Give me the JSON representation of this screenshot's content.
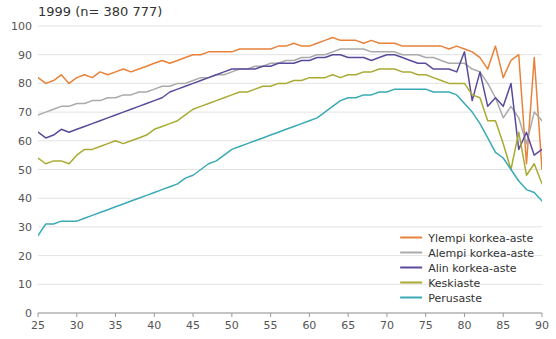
{
  "chart_data": {
    "type": "line",
    "title": "1999 (n= 380 777)",
    "x": [
      25,
      26,
      27,
      28,
      29,
      30,
      31,
      32,
      33,
      34,
      35,
      36,
      37,
      38,
      39,
      40,
      41,
      42,
      43,
      44,
      45,
      46,
      47,
      48,
      49,
      50,
      51,
      52,
      53,
      54,
      55,
      56,
      57,
      58,
      59,
      60,
      61,
      62,
      63,
      64,
      65,
      66,
      67,
      68,
      69,
      70,
      71,
      72,
      73,
      74,
      75,
      76,
      77,
      78,
      79,
      80,
      81,
      82,
      83,
      84,
      85,
      86,
      87,
      88,
      89,
      90
    ],
    "series": [
      {
        "name": "Ylempi korkea-aste",
        "color": "#E8823A",
        "values": [
          82,
          80,
          81,
          83,
          80,
          82,
          83,
          82,
          84,
          83,
          84,
          85,
          84,
          85,
          86,
          87,
          88,
          87,
          88,
          89,
          90,
          90,
          91,
          91,
          91,
          91,
          92,
          92,
          92,
          92,
          92,
          93,
          93,
          94,
          93,
          93,
          94,
          95,
          96,
          95,
          95,
          95,
          94,
          95,
          94,
          94,
          94,
          93,
          93,
          93,
          93,
          93,
          93,
          92,
          93,
          92,
          91,
          89,
          85,
          93,
          82,
          88,
          90,
          52,
          89,
          50
        ]
      },
      {
        "name": "Alempi korkea-aste",
        "color": "#AAAAAA",
        "values": [
          69,
          70,
          71,
          72,
          72,
          73,
          73,
          74,
          74,
          75,
          75,
          76,
          76,
          77,
          77,
          78,
          79,
          79,
          80,
          80,
          81,
          82,
          82,
          83,
          83,
          84,
          85,
          85,
          86,
          86,
          87,
          87,
          88,
          88,
          89,
          89,
          90,
          90,
          91,
          92,
          92,
          92,
          92,
          91,
          91,
          91,
          91,
          90,
          90,
          90,
          89,
          89,
          88,
          87,
          87,
          87,
          85,
          84,
          80,
          75,
          68,
          72,
          68,
          59,
          70,
          67
        ]
      },
      {
        "name": "Alin korkea-aste",
        "color": "#5B4A9B",
        "values": [
          63,
          61,
          62,
          64,
          63,
          64,
          65,
          66,
          67,
          68,
          69,
          70,
          71,
          72,
          73,
          74,
          75,
          77,
          78,
          79,
          80,
          81,
          82,
          83,
          84,
          85,
          85,
          85,
          85,
          86,
          86,
          87,
          87,
          87,
          88,
          88,
          89,
          89,
          90,
          90,
          89,
          89,
          89,
          88,
          89,
          90,
          90,
          89,
          88,
          87,
          87,
          85,
          85,
          85,
          84,
          91,
          74,
          84,
          72,
          75,
          72,
          80,
          57,
          63,
          55,
          57
        ]
      },
      {
        "name": "Keskiaste",
        "color": "#AAAA33",
        "values": [
          54,
          52,
          53,
          53,
          52,
          55,
          57,
          57,
          58,
          59,
          60,
          59,
          60,
          61,
          62,
          64,
          65,
          66,
          67,
          69,
          71,
          72,
          73,
          74,
          75,
          76,
          77,
          77,
          78,
          79,
          79,
          80,
          80,
          81,
          81,
          82,
          82,
          82,
          83,
          82,
          83,
          83,
          84,
          84,
          85,
          85,
          85,
          84,
          84,
          83,
          83,
          82,
          81,
          80,
          80,
          80,
          76,
          75,
          67,
          67,
          59,
          50,
          63,
          48,
          52,
          45
        ]
      },
      {
        "name": "Perusaste",
        "color": "#3AAAB5",
        "values": [
          27,
          31,
          31,
          32,
          32,
          32,
          33,
          34,
          35,
          36,
          37,
          38,
          39,
          40,
          41,
          42,
          43,
          44,
          45,
          47,
          48,
          50,
          52,
          53,
          55,
          57,
          58,
          59,
          60,
          61,
          62,
          63,
          64,
          65,
          66,
          67,
          68,
          70,
          72,
          74,
          75,
          75,
          76,
          76,
          77,
          77,
          78,
          78,
          78,
          78,
          78,
          77,
          77,
          77,
          76,
          73,
          70,
          66,
          61,
          56,
          54,
          50,
          46,
          43,
          42,
          39
        ]
      }
    ],
    "xlim": [
      25,
      90
    ],
    "ylim": [
      0,
      100
    ],
    "xticks": [
      25,
      30,
      35,
      40,
      45,
      50,
      55,
      60,
      65,
      70,
      75,
      80,
      85,
      90
    ],
    "yticks": [
      0,
      10,
      20,
      30,
      40,
      50,
      60,
      70,
      80,
      90,
      100
    ],
    "grid": "y",
    "legend": "lower right"
  }
}
